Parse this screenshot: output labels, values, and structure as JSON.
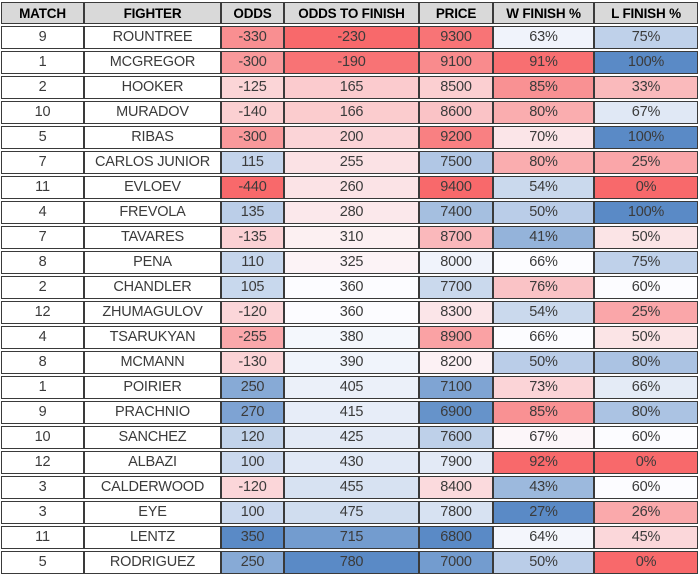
{
  "colors": {
    "scale_red": "#F8696B",
    "scale_mid": "#FCFCFF",
    "scale_blue": "#5A8AC6",
    "header_bg": "#D9D9D9",
    "border": "#3A3A3A"
  },
  "table": {
    "columns": [
      {
        "key": "match",
        "label": "MATCH",
        "scale": null,
        "suffix": ""
      },
      {
        "key": "fighter",
        "label": "FIGHTER",
        "scale": null,
        "suffix": ""
      },
      {
        "key": "odds",
        "label": "ODDS",
        "scale": "high_blue",
        "suffix": ""
      },
      {
        "key": "odds_to_finish",
        "label": "ODDS TO FINISH",
        "scale": "high_blue",
        "suffix": ""
      },
      {
        "key": "price",
        "label": "PRICE",
        "scale": "high_red",
        "suffix": ""
      },
      {
        "key": "w_finish_pct",
        "label": "W FINISH %",
        "scale": "high_red",
        "suffix": "%"
      },
      {
        "key": "l_finish_pct",
        "label": "L FINISH %",
        "scale": "high_blue",
        "suffix": "%"
      }
    ],
    "rows": [
      {
        "match": 9,
        "fighter": "ROUNTREE",
        "odds": -330,
        "odds_to_finish": -230,
        "price": 9300,
        "w_finish_pct": 63,
        "l_finish_pct": 75
      },
      {
        "match": 1,
        "fighter": "MCGREGOR",
        "odds": -300,
        "odds_to_finish": -190,
        "price": 9100,
        "w_finish_pct": 91,
        "l_finish_pct": 100
      },
      {
        "match": 2,
        "fighter": "HOOKER",
        "odds": -125,
        "odds_to_finish": 165,
        "price": 8500,
        "w_finish_pct": 85,
        "l_finish_pct": 33
      },
      {
        "match": 10,
        "fighter": "MURADOV",
        "odds": -140,
        "odds_to_finish": 166,
        "price": 8600,
        "w_finish_pct": 80,
        "l_finish_pct": 67
      },
      {
        "match": 5,
        "fighter": "RIBAS",
        "odds": -300,
        "odds_to_finish": 200,
        "price": 9200,
        "w_finish_pct": 70,
        "l_finish_pct": 100
      },
      {
        "match": 7,
        "fighter": "CARLOS JUNIOR",
        "odds": 115,
        "odds_to_finish": 255,
        "price": 7500,
        "w_finish_pct": 80,
        "l_finish_pct": 25
      },
      {
        "match": 11,
        "fighter": "EVLOEV",
        "odds": -440,
        "odds_to_finish": 260,
        "price": 9400,
        "w_finish_pct": 54,
        "l_finish_pct": 0
      },
      {
        "match": 4,
        "fighter": "FREVOLA",
        "odds": 135,
        "odds_to_finish": 280,
        "price": 7400,
        "w_finish_pct": 50,
        "l_finish_pct": 100
      },
      {
        "match": 7,
        "fighter": "TAVARES",
        "odds": -135,
        "odds_to_finish": 310,
        "price": 8700,
        "w_finish_pct": 41,
        "l_finish_pct": 50
      },
      {
        "match": 8,
        "fighter": "PENA",
        "odds": 110,
        "odds_to_finish": 325,
        "price": 8000,
        "w_finish_pct": 66,
        "l_finish_pct": 75
      },
      {
        "match": 2,
        "fighter": "CHANDLER",
        "odds": 105,
        "odds_to_finish": 360,
        "price": 7700,
        "w_finish_pct": 76,
        "l_finish_pct": 60
      },
      {
        "match": 12,
        "fighter": "ZHUMAGULOV",
        "odds": -120,
        "odds_to_finish": 360,
        "price": 8300,
        "w_finish_pct": 54,
        "l_finish_pct": 25
      },
      {
        "match": 4,
        "fighter": "TSARUKYAN",
        "odds": -255,
        "odds_to_finish": 380,
        "price": 8900,
        "w_finish_pct": 66,
        "l_finish_pct": 50
      },
      {
        "match": 8,
        "fighter": "MCMANN",
        "odds": -130,
        "odds_to_finish": 390,
        "price": 8200,
        "w_finish_pct": 50,
        "l_finish_pct": 80
      },
      {
        "match": 1,
        "fighter": "POIRIER",
        "odds": 250,
        "odds_to_finish": 405,
        "price": 7100,
        "w_finish_pct": 73,
        "l_finish_pct": 66
      },
      {
        "match": 9,
        "fighter": "PRACHNIO",
        "odds": 270,
        "odds_to_finish": 415,
        "price": 6900,
        "w_finish_pct": 85,
        "l_finish_pct": 80
      },
      {
        "match": 10,
        "fighter": "SANCHEZ",
        "odds": 120,
        "odds_to_finish": 425,
        "price": 7600,
        "w_finish_pct": 67,
        "l_finish_pct": 60
      },
      {
        "match": 12,
        "fighter": "ALBAZI",
        "odds": 100,
        "odds_to_finish": 430,
        "price": 7900,
        "w_finish_pct": 92,
        "l_finish_pct": 0
      },
      {
        "match": 3,
        "fighter": "CALDERWOOD",
        "odds": -120,
        "odds_to_finish": 455,
        "price": 8400,
        "w_finish_pct": 43,
        "l_finish_pct": 60
      },
      {
        "match": 3,
        "fighter": "EYE",
        "odds": 100,
        "odds_to_finish": 475,
        "price": 7800,
        "w_finish_pct": 27,
        "l_finish_pct": 26
      },
      {
        "match": 11,
        "fighter": "LENTZ",
        "odds": 350,
        "odds_to_finish": 715,
        "price": 6800,
        "w_finish_pct": 64,
        "l_finish_pct": 45
      },
      {
        "match": 5,
        "fighter": "RODRIGUEZ",
        "odds": 250,
        "odds_to_finish": 780,
        "price": 7000,
        "w_finish_pct": 50,
        "l_finish_pct": 0
      }
    ]
  }
}
